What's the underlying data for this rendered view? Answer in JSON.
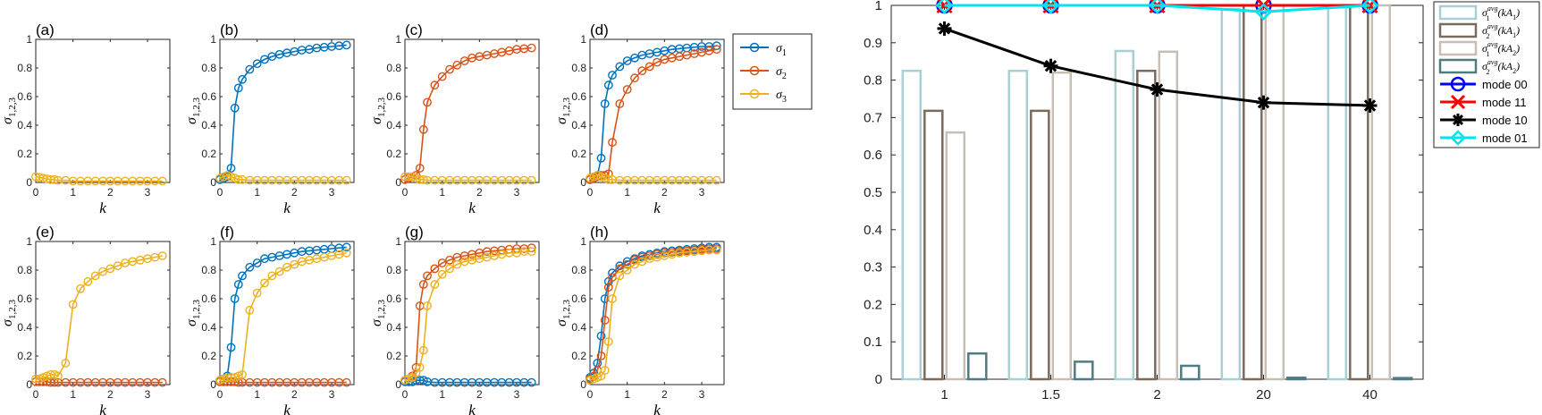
{
  "chart_data": [
    {
      "type": "line",
      "panel": "(a)",
      "xlabel": "k",
      "ylabel": "σ_{1,2,3}",
      "xlim": [
        0,
        3.6
      ],
      "ylim": [
        0,
        1
      ],
      "xticks": [
        0,
        1,
        2,
        3
      ],
      "yticks": [
        0,
        0.2,
        0.4,
        0.6,
        0.8,
        1
      ],
      "x": [
        0,
        0.1,
        0.2,
        0.3,
        0.4,
        0.5,
        0.6,
        0.8,
        1.0,
        1.2,
        1.4,
        1.6,
        1.8,
        2.0,
        2.2,
        2.4,
        2.6,
        2.8,
        3.0,
        3.2,
        3.4
      ],
      "series": [
        {
          "name": "σ_3",
          "color": "#EDB120",
          "values": [
            0.04,
            0.035,
            0.03,
            0.025,
            0.02,
            0.02,
            0.015,
            0.015,
            0.01,
            0.01,
            0.01,
            0.01,
            0.01,
            0.01,
            0.01,
            0.01,
            0.01,
            0.01,
            0.01,
            0.01,
            0.01
          ]
        }
      ]
    },
    {
      "type": "line",
      "panel": "(b)",
      "xlabel": "k",
      "ylabel": "σ_{1,2,3}",
      "xlim": [
        0,
        3.6
      ],
      "ylim": [
        0,
        1
      ],
      "xticks": [
        0,
        1,
        2,
        3
      ],
      "yticks": [
        0,
        0.2,
        0.4,
        0.6,
        0.8,
        1
      ],
      "x": [
        0,
        0.1,
        0.2,
        0.3,
        0.4,
        0.5,
        0.6,
        0.8,
        1.0,
        1.2,
        1.4,
        1.6,
        1.8,
        2.0,
        2.2,
        2.4,
        2.6,
        2.8,
        3.0,
        3.2,
        3.4
      ],
      "series": [
        {
          "name": "σ_1",
          "color": "#0072BD",
          "values": [
            0.02,
            0.03,
            0.04,
            0.1,
            0.52,
            0.66,
            0.72,
            0.79,
            0.83,
            0.86,
            0.88,
            0.895,
            0.905,
            0.915,
            0.925,
            0.93,
            0.94,
            0.945,
            0.95,
            0.955,
            0.96
          ]
        },
        {
          "name": "σ_3",
          "color": "#EDB120",
          "values": [
            0.03,
            0.04,
            0.05,
            0.04,
            0.03,
            0.02,
            0.02,
            0.015,
            0.015,
            0.015,
            0.015,
            0.015,
            0.015,
            0.015,
            0.015,
            0.015,
            0.015,
            0.015,
            0.015,
            0.015,
            0.015
          ]
        }
      ]
    },
    {
      "type": "line",
      "panel": "(c)",
      "xlabel": "k",
      "ylabel": "σ_{1,2,3}",
      "xlim": [
        0,
        3.6
      ],
      "ylim": [
        0,
        1
      ],
      "xticks": [
        0,
        1,
        2,
        3
      ],
      "yticks": [
        0,
        0.2,
        0.4,
        0.6,
        0.8,
        1
      ],
      "x": [
        0,
        0.1,
        0.2,
        0.3,
        0.4,
        0.5,
        0.6,
        0.8,
        1.0,
        1.2,
        1.4,
        1.6,
        1.8,
        2.0,
        2.2,
        2.4,
        2.6,
        2.8,
        3.0,
        3.2,
        3.4
      ],
      "series": [
        {
          "name": "σ_2",
          "color": "#D95319",
          "values": [
            0.02,
            0.03,
            0.04,
            0.05,
            0.1,
            0.37,
            0.56,
            0.68,
            0.74,
            0.79,
            0.82,
            0.85,
            0.87,
            0.88,
            0.89,
            0.9,
            0.91,
            0.92,
            0.93,
            0.935,
            0.94
          ]
        },
        {
          "name": "σ_3",
          "color": "#EDB120",
          "values": [
            0.04,
            0.04,
            0.04,
            0.03,
            0.02,
            0.02,
            0.015,
            0.015,
            0.015,
            0.015,
            0.015,
            0.015,
            0.015,
            0.015,
            0.015,
            0.015,
            0.015,
            0.015,
            0.015,
            0.015,
            0.015
          ]
        }
      ]
    },
    {
      "type": "line",
      "panel": "(d)",
      "xlabel": "k",
      "ylabel": "σ_{1,2,3}",
      "xlim": [
        0,
        3.6
      ],
      "ylim": [
        0,
        1
      ],
      "xticks": [
        0,
        1,
        2,
        3
      ],
      "yticks": [
        0,
        0.2,
        0.4,
        0.6,
        0.8,
        1
      ],
      "x": [
        0,
        0.1,
        0.2,
        0.3,
        0.4,
        0.5,
        0.6,
        0.8,
        1.0,
        1.2,
        1.4,
        1.6,
        1.8,
        2.0,
        2.2,
        2.4,
        2.6,
        2.8,
        3.0,
        3.2,
        3.4
      ],
      "series": [
        {
          "name": "σ_1",
          "color": "#0072BD",
          "values": [
            0.02,
            0.03,
            0.05,
            0.17,
            0.55,
            0.68,
            0.75,
            0.81,
            0.85,
            0.87,
            0.89,
            0.9,
            0.91,
            0.92,
            0.93,
            0.935,
            0.94,
            0.945,
            0.95,
            0.95,
            0.955
          ]
        },
        {
          "name": "σ_2",
          "color": "#D95319",
          "values": [
            0.02,
            0.03,
            0.04,
            0.05,
            0.05,
            0.06,
            0.28,
            0.55,
            0.65,
            0.73,
            0.78,
            0.81,
            0.84,
            0.86,
            0.87,
            0.88,
            0.89,
            0.9,
            0.91,
            0.92,
            0.93
          ]
        },
        {
          "name": "σ_3",
          "color": "#EDB120",
          "values": [
            0.03,
            0.04,
            0.05,
            0.04,
            0.03,
            0.02,
            0.02,
            0.015,
            0.015,
            0.015,
            0.015,
            0.015,
            0.015,
            0.015,
            0.015,
            0.015,
            0.015,
            0.015,
            0.015,
            0.015,
            0.015
          ]
        }
      ]
    },
    {
      "type": "line",
      "panel": "(e)",
      "xlabel": "k",
      "ylabel": "σ_{1,2,3}",
      "xlim": [
        0,
        3.6
      ],
      "ylim": [
        0,
        1
      ],
      "xticks": [
        0,
        1,
        2,
        3
      ],
      "yticks": [
        0,
        0.2,
        0.4,
        0.6,
        0.8,
        1
      ],
      "x": [
        0,
        0.1,
        0.2,
        0.3,
        0.4,
        0.5,
        0.6,
        0.8,
        1.0,
        1.2,
        1.4,
        1.6,
        1.8,
        2.0,
        2.2,
        2.4,
        2.6,
        2.8,
        3.0,
        3.2,
        3.4
      ],
      "series": [
        {
          "name": "σ_2",
          "color": "#D95319",
          "values": [
            0.02,
            0.02,
            0.02,
            0.02,
            0.015,
            0.015,
            0.015,
            0.015,
            0.015,
            0.015,
            0.015,
            0.015,
            0.015,
            0.015,
            0.015,
            0.015,
            0.015,
            0.015,
            0.015,
            0.015,
            0.015
          ]
        },
        {
          "name": "σ_3",
          "color": "#EDB120",
          "values": [
            0.04,
            0.04,
            0.05,
            0.06,
            0.07,
            0.07,
            0.06,
            0.15,
            0.56,
            0.67,
            0.72,
            0.76,
            0.79,
            0.81,
            0.83,
            0.85,
            0.86,
            0.87,
            0.88,
            0.89,
            0.9
          ]
        }
      ]
    },
    {
      "type": "line",
      "panel": "(f)",
      "xlabel": "k",
      "ylabel": "σ_{1,2,3}",
      "xlim": [
        0,
        3.6
      ],
      "ylim": [
        0,
        1
      ],
      "xticks": [
        0,
        1,
        2,
        3
      ],
      "yticks": [
        0,
        0.2,
        0.4,
        0.6,
        0.8,
        1
      ],
      "x": [
        0,
        0.1,
        0.2,
        0.3,
        0.4,
        0.5,
        0.6,
        0.8,
        1.0,
        1.2,
        1.4,
        1.6,
        1.8,
        2.0,
        2.2,
        2.4,
        2.6,
        2.8,
        3.0,
        3.2,
        3.4
      ],
      "series": [
        {
          "name": "σ_1",
          "color": "#0072BD",
          "values": [
            0.03,
            0.04,
            0.06,
            0.26,
            0.6,
            0.7,
            0.76,
            0.82,
            0.85,
            0.88,
            0.89,
            0.9,
            0.91,
            0.92,
            0.93,
            0.935,
            0.94,
            0.945,
            0.95,
            0.955,
            0.96
          ]
        },
        {
          "name": "σ_2",
          "color": "#D95319",
          "values": [
            0.02,
            0.02,
            0.02,
            0.02,
            0.02,
            0.015,
            0.015,
            0.015,
            0.015,
            0.015,
            0.015,
            0.015,
            0.015,
            0.015,
            0.015,
            0.015,
            0.015,
            0.015,
            0.015,
            0.015,
            0.015
          ]
        },
        {
          "name": "σ_3",
          "color": "#EDB120",
          "values": [
            0.03,
            0.04,
            0.05,
            0.05,
            0.05,
            0.06,
            0.07,
            0.52,
            0.64,
            0.71,
            0.76,
            0.79,
            0.82,
            0.84,
            0.86,
            0.87,
            0.88,
            0.89,
            0.9,
            0.91,
            0.92
          ]
        }
      ]
    },
    {
      "type": "line",
      "panel": "(g)",
      "xlabel": "k",
      "ylabel": "σ_{1,2,3}",
      "xlim": [
        0,
        3.6
      ],
      "ylim": [
        0,
        1
      ],
      "xticks": [
        0,
        1,
        2,
        3
      ],
      "yticks": [
        0,
        0.2,
        0.4,
        0.6,
        0.8,
        1
      ],
      "x": [
        0,
        0.1,
        0.2,
        0.3,
        0.4,
        0.5,
        0.6,
        0.8,
        1.0,
        1.2,
        1.4,
        1.6,
        1.8,
        2.0,
        2.2,
        2.4,
        2.6,
        2.8,
        3.0,
        3.2,
        3.4
      ],
      "series": [
        {
          "name": "σ_1",
          "color": "#0072BD",
          "values": [
            0.02,
            0.02,
            0.02,
            0.03,
            0.03,
            0.03,
            0.02,
            0.015,
            0.015,
            0.015,
            0.015,
            0.015,
            0.015,
            0.015,
            0.015,
            0.015,
            0.015,
            0.015,
            0.015,
            0.015,
            0.015
          ]
        },
        {
          "name": "σ_2",
          "color": "#D95319",
          "values": [
            0.03,
            0.04,
            0.06,
            0.12,
            0.55,
            0.7,
            0.76,
            0.81,
            0.85,
            0.87,
            0.89,
            0.9,
            0.91,
            0.92,
            0.93,
            0.935,
            0.94,
            0.945,
            0.95,
            0.95,
            0.955
          ]
        },
        {
          "name": "σ_3",
          "color": "#EDB120",
          "values": [
            0.03,
            0.04,
            0.05,
            0.08,
            0.12,
            0.24,
            0.55,
            0.7,
            0.77,
            0.81,
            0.84,
            0.86,
            0.87,
            0.88,
            0.89,
            0.9,
            0.91,
            0.92,
            0.92,
            0.93,
            0.93
          ]
        }
      ]
    },
    {
      "type": "line",
      "panel": "(h)",
      "xlabel": "k",
      "ylabel": "σ_{1,2,3}",
      "xlim": [
        0,
        3.6
      ],
      "ylim": [
        0,
        1
      ],
      "xticks": [
        0,
        1,
        2,
        3
      ],
      "yticks": [
        0,
        0.2,
        0.4,
        0.6,
        0.8,
        1
      ],
      "x": [
        0,
        0.1,
        0.2,
        0.3,
        0.4,
        0.5,
        0.6,
        0.8,
        1.0,
        1.2,
        1.4,
        1.6,
        1.8,
        2.0,
        2.2,
        2.4,
        2.6,
        2.8,
        3.0,
        3.2,
        3.4
      ],
      "series": [
        {
          "name": "σ_1",
          "color": "#0072BD",
          "values": [
            0.05,
            0.08,
            0.15,
            0.34,
            0.6,
            0.72,
            0.78,
            0.83,
            0.86,
            0.88,
            0.9,
            0.91,
            0.92,
            0.93,
            0.935,
            0.94,
            0.945,
            0.95,
            0.955,
            0.96,
            0.96
          ]
        },
        {
          "name": "σ_2",
          "color": "#D95319",
          "values": [
            0.04,
            0.06,
            0.1,
            0.2,
            0.45,
            0.68,
            0.75,
            0.81,
            0.84,
            0.87,
            0.89,
            0.9,
            0.91,
            0.92,
            0.925,
            0.93,
            0.935,
            0.94,
            0.945,
            0.95,
            0.95
          ]
        },
        {
          "name": "σ_3",
          "color": "#EDB120",
          "values": [
            0.03,
            0.04,
            0.05,
            0.06,
            0.1,
            0.3,
            0.6,
            0.76,
            0.8,
            0.84,
            0.86,
            0.88,
            0.89,
            0.9,
            0.91,
            0.92,
            0.925,
            0.93,
            0.935,
            0.94,
            0.94
          ]
        }
      ]
    },
    {
      "type": "bar",
      "panel": "right",
      "categories": [
        "1",
        "1.5",
        "2",
        "20",
        "40"
      ],
      "ylim": [
        0,
        1
      ],
      "yticks": [
        0,
        0.1,
        0.2,
        0.3,
        0.4,
        0.5,
        0.6,
        0.7,
        0.8,
        0.9,
        1
      ],
      "legend_position": "outside-right",
      "bars": [
        {
          "name": "σ_1^{avg}(kA_1)",
          "color": "#A9D0D3",
          "values": [
            0.825,
            0.825,
            0.878,
            0.99,
            1.0
          ]
        },
        {
          "name": "σ_2^{avg}(kA_1)",
          "color": "#7C6A5C",
          "values": [
            0.718,
            0.718,
            0.825,
            1.0,
            1.0
          ]
        },
        {
          "name": "σ_1^{avg}(kA_2)",
          "color": "#C7BEB4",
          "values": [
            0.66,
            0.82,
            0.876,
            1.0,
            1.0
          ]
        },
        {
          "name": "σ_2^{avg}(kA_2)",
          "color": "#4F7C82",
          "values": [
            0.069,
            0.047,
            0.036,
            0.004,
            0.003
          ]
        }
      ],
      "lines": [
        {
          "name": "mode 00",
          "color": "#0000FF",
          "marker": "circle",
          "values": [
            1.0,
            1.0,
            1.0,
            1.0,
            1.0
          ]
        },
        {
          "name": "mode 11",
          "color": "#FF0000",
          "marker": "x",
          "values": [
            1.0,
            1.0,
            1.0,
            1.0,
            1.0
          ]
        },
        {
          "name": "mode 10",
          "color": "#000000",
          "marker": "star",
          "values": [
            0.938,
            0.838,
            0.775,
            0.74,
            0.732
          ]
        },
        {
          "name": "mode 01",
          "color": "#00E5EE",
          "marker": "diamond",
          "values": [
            1.0,
            1.0,
            1.0,
            0.983,
            1.0
          ]
        }
      ]
    }
  ],
  "legend_small": {
    "entries": [
      {
        "label": "σ_1",
        "base": "σ",
        "sub": "1",
        "color": "#0072BD"
      },
      {
        "label": "σ_2",
        "base": "σ",
        "sub": "2",
        "color": "#D95319"
      },
      {
        "label": "σ_3",
        "base": "σ",
        "sub": "3",
        "color": "#EDB120"
      }
    ]
  },
  "legend_right": {
    "entries": [
      {
        "kind": "bar",
        "color": "#A9D0D3",
        "base": "σ",
        "sup": "avg",
        "sub": "1",
        "arg": "(kA",
        "argsub": "1",
        "close": ")"
      },
      {
        "kind": "bar",
        "color": "#7C6A5C",
        "base": "σ",
        "sup": "avg",
        "sub": "2",
        "arg": "(kA",
        "argsub": "1",
        "close": ")"
      },
      {
        "kind": "bar",
        "color": "#C7BEB4",
        "base": "σ",
        "sup": "avg",
        "sub": "1",
        "arg": "(kA",
        "argsub": "2",
        "close": ")"
      },
      {
        "kind": "bar",
        "color": "#4F7C82",
        "base": "σ",
        "sup": "avg",
        "sub": "2",
        "arg": "(kA",
        "argsub": "2",
        "close": ")"
      },
      {
        "kind": "line",
        "color": "#0000FF",
        "marker": "circle",
        "text": "mode 00"
      },
      {
        "kind": "line",
        "color": "#FF0000",
        "marker": "x",
        "text": "mode 11"
      },
      {
        "kind": "line",
        "color": "#000000",
        "marker": "star",
        "text": "mode 10"
      },
      {
        "kind": "line",
        "color": "#00E5EE",
        "marker": "diamond",
        "text": "mode 01"
      }
    ]
  },
  "ylabel_parts": {
    "base": "σ",
    "sub": "1,2,3"
  }
}
